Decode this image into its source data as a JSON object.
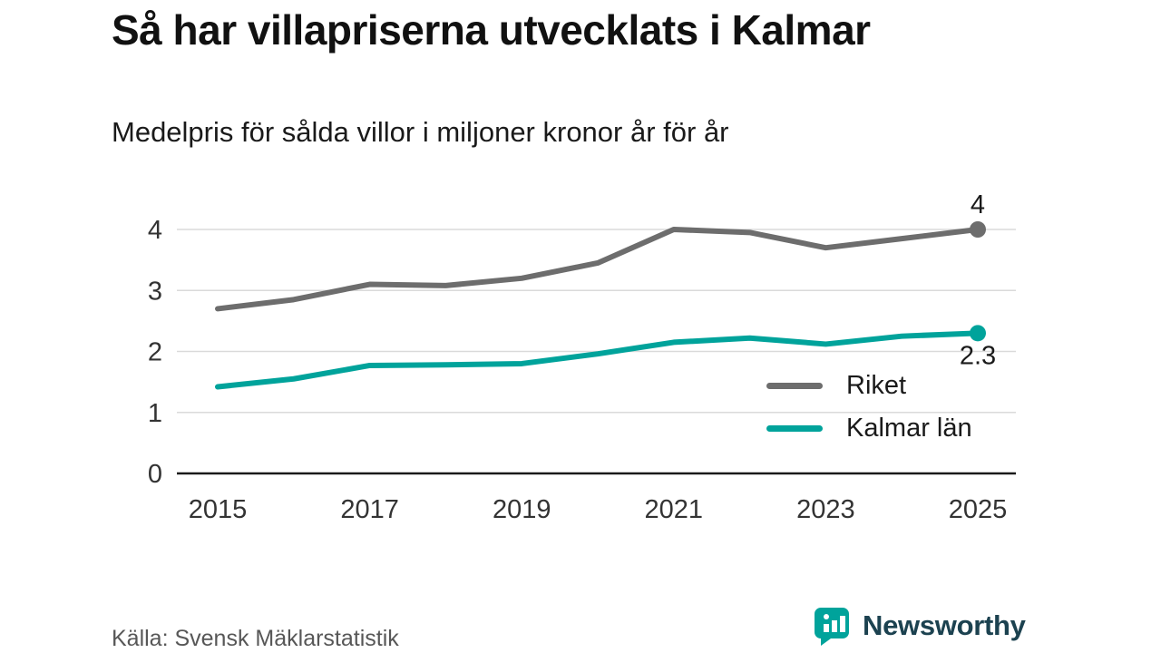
{
  "header": {
    "title": "Så har villapriserna utvecklats i Kalmar",
    "subtitle": "Medelpris för sålda villor i miljoner kronor år för år"
  },
  "footer": {
    "source": "Källa: Svensk Mäklarstatistik",
    "brand": "Newsworthy"
  },
  "colors": {
    "riket": "#6d6d6d",
    "kalmar": "#00a39b",
    "grid": "#dadada",
    "axis": "#1a1a1a",
    "tick_text": "#333333",
    "brand_text": "#1c4250",
    "brand_icon": "#00a39b"
  },
  "chart_data": {
    "type": "line",
    "title": "Så har villapriserna utvecklats i Kalmar",
    "subtitle": "Medelpris för sålda villor i miljoner kronor år för år",
    "xlabel": "",
    "ylabel": "",
    "x": [
      2015,
      2016,
      2017,
      2018,
      2019,
      2020,
      2021,
      2022,
      2023,
      2024,
      2025
    ],
    "series": [
      {
        "name": "Riket",
        "color": "#6d6d6d",
        "values": [
          2.7,
          2.85,
          3.1,
          3.08,
          3.2,
          3.45,
          4.0,
          3.95,
          3.7,
          3.85,
          4.0
        ],
        "end_label": "4",
        "end_label_position": "above"
      },
      {
        "name": "Kalmar län",
        "color": "#00a39b",
        "values": [
          1.42,
          1.55,
          1.77,
          1.78,
          1.8,
          1.96,
          2.15,
          2.22,
          2.12,
          2.25,
          2.3
        ],
        "end_label": "2.3",
        "end_label_position": "below"
      }
    ],
    "ylim": [
      0,
      4
    ],
    "yticks": [
      0,
      1,
      2,
      3,
      4
    ],
    "xticks": [
      2015,
      2017,
      2019,
      2021,
      2023,
      2025
    ],
    "grid": true,
    "legend_position": "inside-bottom-right"
  }
}
